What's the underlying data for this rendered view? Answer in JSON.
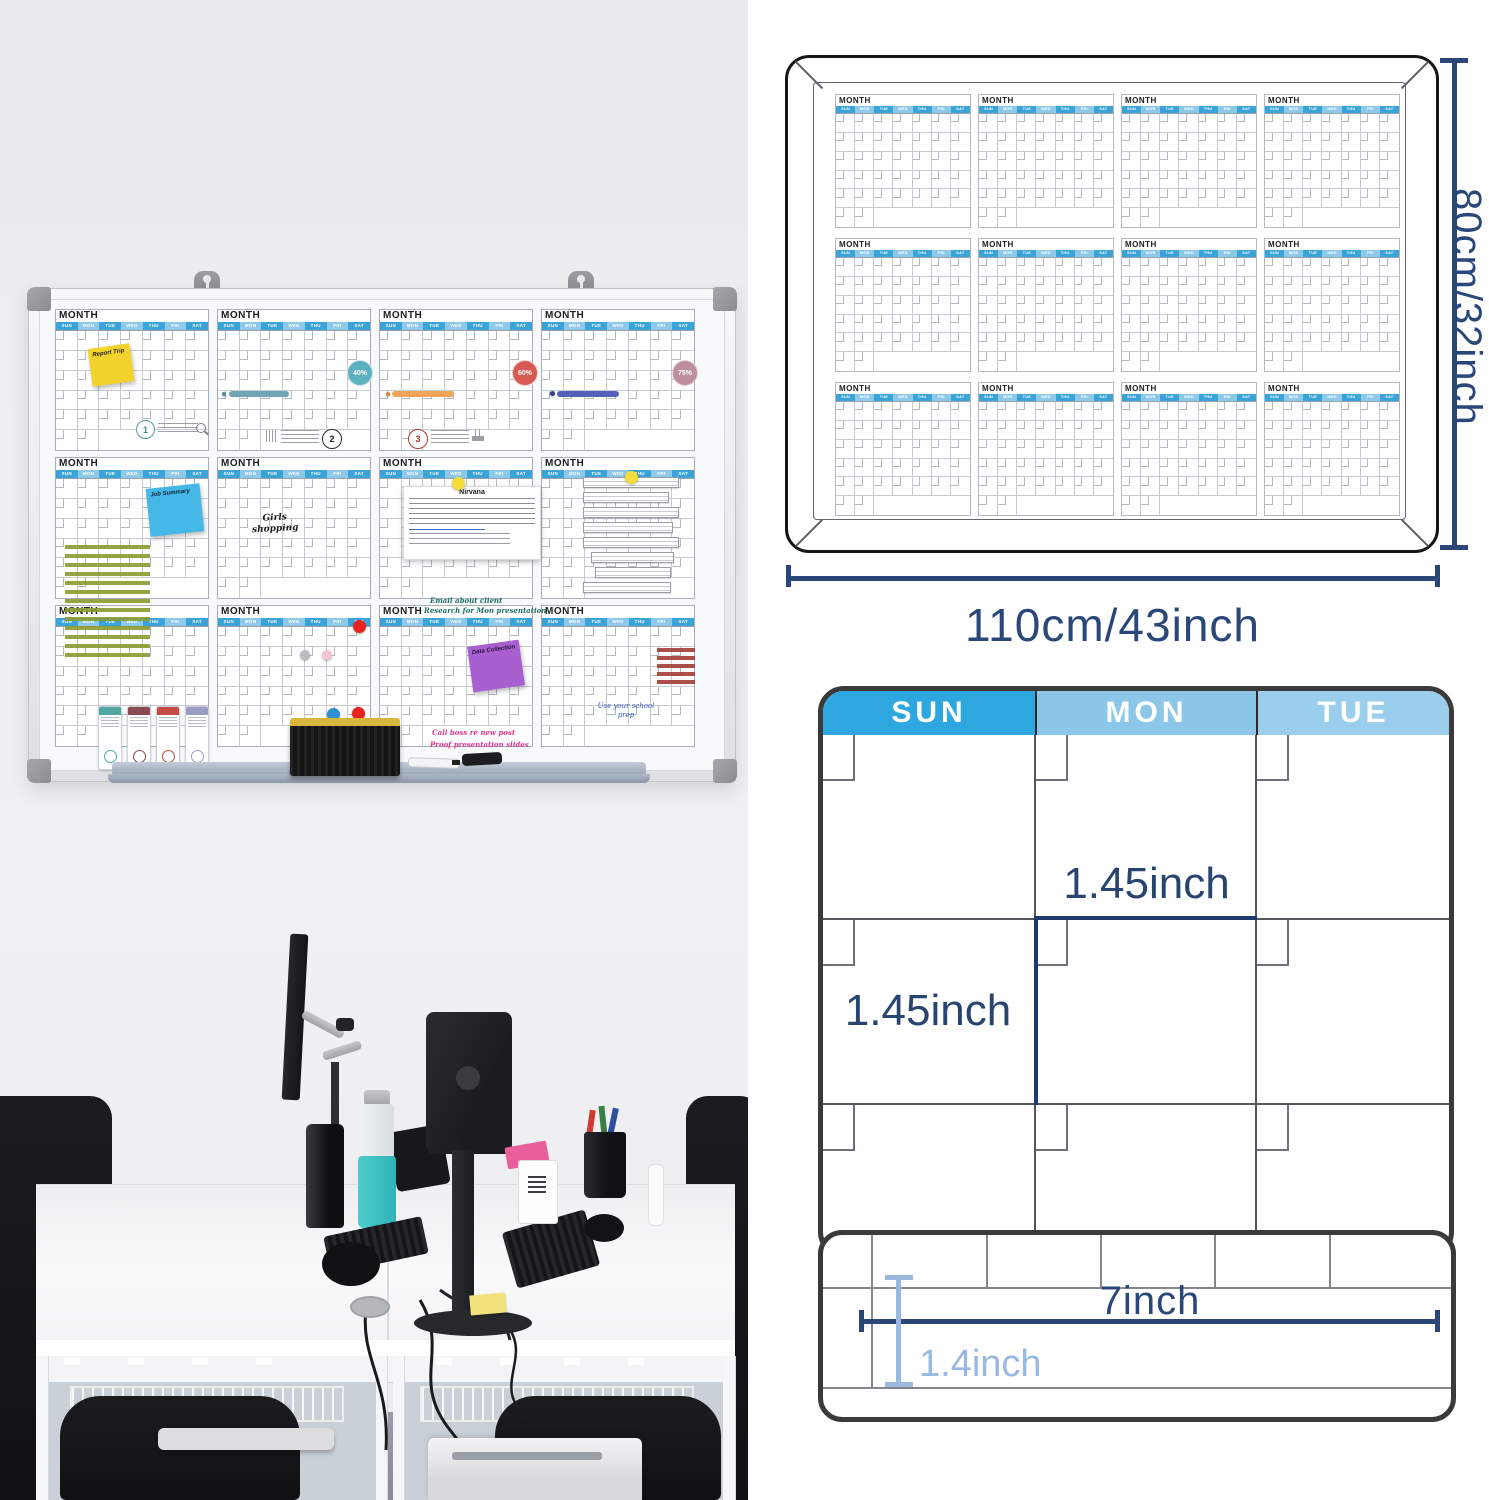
{
  "colors": {
    "dim_navy": "#2a4779",
    "dim_light_blue": "#9ab9e0",
    "header_sun_blue": "#2ea7e0",
    "header_mon_blue": "#8cc7e9",
    "header_tue_blue": "#9bcdec",
    "accent_teal": "#6fa6b4",
    "accent_orange": "#f2a45c",
    "accent_indigo": "#5560b8",
    "pct_teal": "#5cb0c0",
    "pct_red": "#d85a55",
    "pct_mauve": "#bd8f9e"
  },
  "calendar": {
    "month_label": "MONTH",
    "day_abbrs": [
      "SUN",
      "MON",
      "TUE",
      "WED",
      "THU",
      "FRI",
      "SAT"
    ]
  },
  "photo_board": {
    "decorations": {
      "sticky_yellow": "Report Trip",
      "sticky_blue": "Job Summary",
      "sticky_purple": "Data Collection",
      "girls": "Girls shopping",
      "note_title": "Nirvana",
      "email": "Email about client",
      "research": "Research for Mon presentation",
      "call": "Call boss re new post",
      "proof": "Proof presentation slides",
      "prep": "Use your school prep",
      "pct1": "40%",
      "pct2": "60%",
      "pct3": "75%",
      "step1": "1",
      "step2": "2",
      "step3": "3"
    }
  },
  "dimensions": {
    "board_height": "80cm/32inch",
    "board_width": "110cm/43inch",
    "cell_width": "1.45inch",
    "cell_height": "1.45inch",
    "strip_width": "7inch",
    "strip_height": "1.4inch"
  },
  "cell_diagram_days": [
    "SUN",
    "MON",
    "TUE"
  ]
}
